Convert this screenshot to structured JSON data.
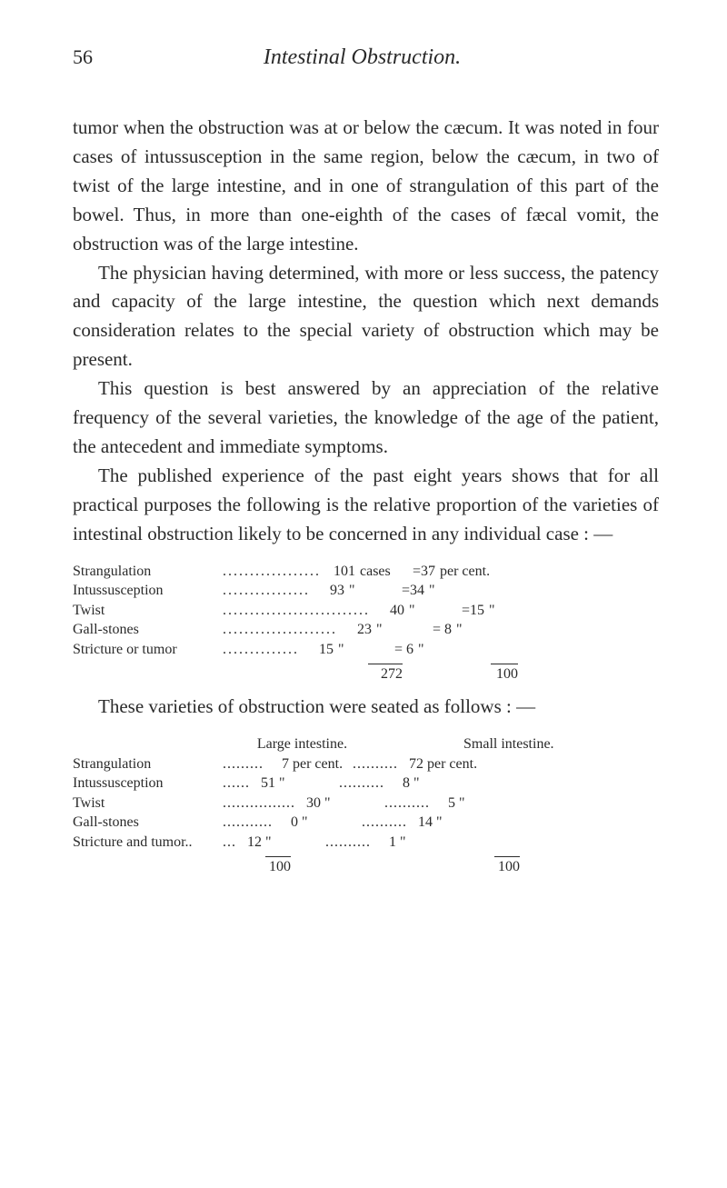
{
  "header": {
    "page_number": "56",
    "title": "Intestinal Obstruction."
  },
  "paragraphs": {
    "p1": "tumor when the obstruction was at or below the cæcum. It was noted in four cases of intussusception in the same region, below the cæcum, in two of twist of the large intestine, and in one of strangulation of this part of the bowel. Thus, in more than one-eighth of the cases of fæcal vomit, the obstruction was of the large intestine.",
    "p2": "The physician having determined, with more or less success, the patency and capacity of the large intestine, the question which next demands consideration relates to the special variety of obstruction which may be present.",
    "p3": "This question is best answered by an appreciation of the relative frequency of the several varieties, the knowledge of the age of the patient, the antecedent and immediate symptoms.",
    "p4": "The published experience of the past eight years shows that for all practical purposes the following is the relative proportion of the varieties of intestinal obstruction likely to be concerned in any individual case : —",
    "p5": "These varieties of obstruction were seated as follows : —"
  },
  "table1": {
    "rows": [
      {
        "label": "Strangulation",
        "dots": "..................",
        "cases": "101",
        "unit": "cases",
        "eq": "=37",
        "suffix": "per cent."
      },
      {
        "label": "Intussusception",
        "dots": "................",
        "cases": "93",
        "unit": "\"",
        "eq": "=34",
        "suffix": "\""
      },
      {
        "label": "Twist",
        "dots": "...........................",
        "cases": "40",
        "unit": "\"",
        "eq": "=15",
        "suffix": "\""
      },
      {
        "label": "Gall-stones",
        "dots": ".....................",
        "cases": "23",
        "unit": "\"",
        "eq": "= 8",
        "suffix": "\""
      },
      {
        "label": "Stricture or tumor",
        "dots": "..............",
        "cases": "15",
        "unit": "\"",
        "eq": "= 6",
        "suffix": "\""
      }
    ],
    "total_cases": "272",
    "total_pct": "100"
  },
  "table2": {
    "header_col1": "Large intestine.",
    "header_col2": "Small intestine.",
    "rows": [
      {
        "label": "Strangulation",
        "dots1": ".........",
        "n1": "7",
        "u1": "per cent.",
        "dots2": "..........",
        "n2": "72",
        "u2": "per cent."
      },
      {
        "label": "Intussusception",
        "dots1": "......",
        "n1": "51",
        "u1": "\"",
        "dots2": "..........",
        "n2": "8",
        "u2": "\""
      },
      {
        "label": "Twist",
        "dots1": "................",
        "n1": "30",
        "u1": "\"",
        "dots2": "..........",
        "n2": "5",
        "u2": "\""
      },
      {
        "label": "Gall-stones",
        "dots1": "...........",
        "n1": "0",
        "u1": "\"",
        "dots2": "..........",
        "n2": "14",
        "u2": "\""
      },
      {
        "label": "Stricture and tumor..",
        "dots1": "...",
        "n1": "12",
        "u1": "\"",
        "dots2": "..........",
        "n2": "1",
        "u2": "\""
      }
    ],
    "total1": "100",
    "total2": "100"
  }
}
